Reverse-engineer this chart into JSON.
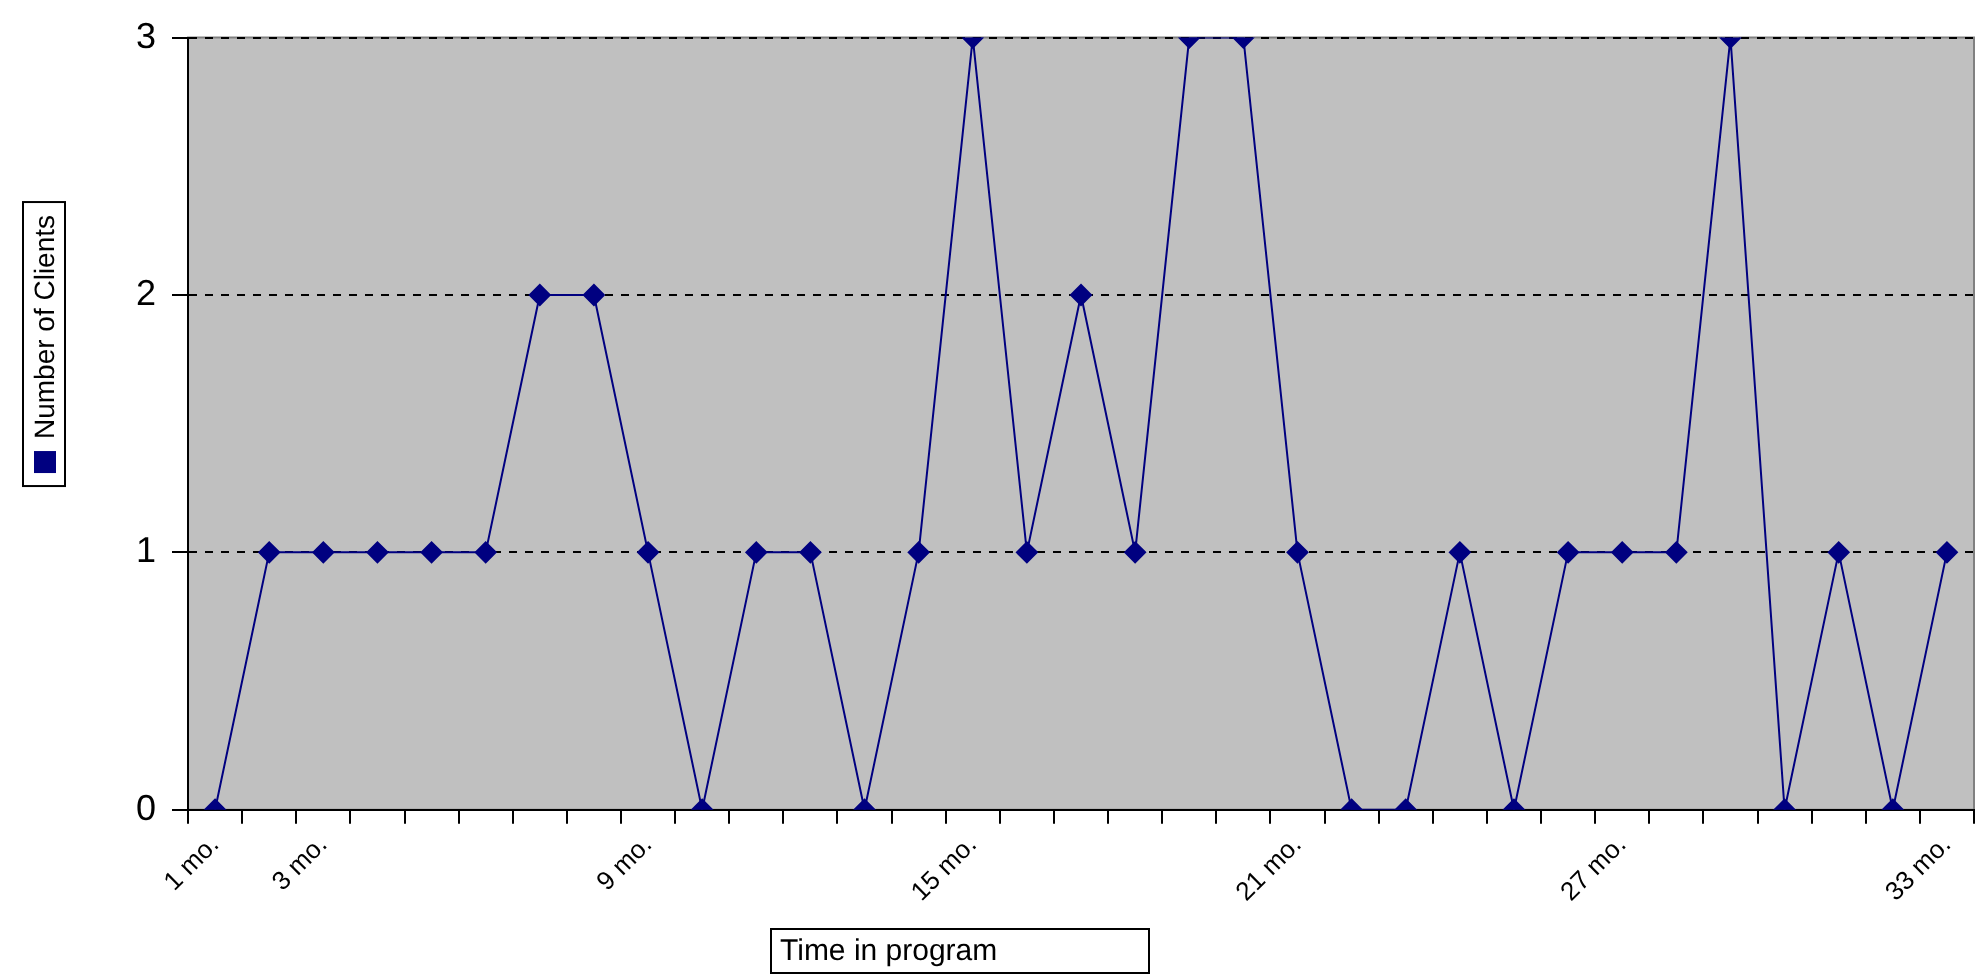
{
  "chart_data": {
    "type": "line",
    "xlabel": "Time in program",
    "categories": [
      "1 mo.",
      null,
      "3 mo.",
      null,
      null,
      null,
      null,
      null,
      "9 mo.",
      null,
      null,
      null,
      null,
      null,
      "15 mo.",
      null,
      null,
      null,
      null,
      null,
      "21 mo.",
      null,
      null,
      null,
      null,
      null,
      "27 mo.",
      null,
      null,
      null,
      null,
      null,
      "33 mo."
    ],
    "series": [
      {
        "name": "Number of Clients",
        "color": "#000080",
        "values": [
          0,
          1,
          1,
          1,
          1,
          1,
          2,
          2,
          1,
          0,
          1,
          1,
          0,
          1,
          3,
          1,
          2,
          1,
          3,
          3,
          1,
          0,
          0,
          1,
          0,
          1,
          1,
          1,
          3,
          0,
          1,
          0,
          1
        ]
      }
    ],
    "ylim": [
      0,
      3
    ],
    "yticks": [
      0,
      1,
      2,
      3
    ],
    "grid": "y",
    "legend": "left",
    "marker": "diamond",
    "line_style": "solid"
  }
}
